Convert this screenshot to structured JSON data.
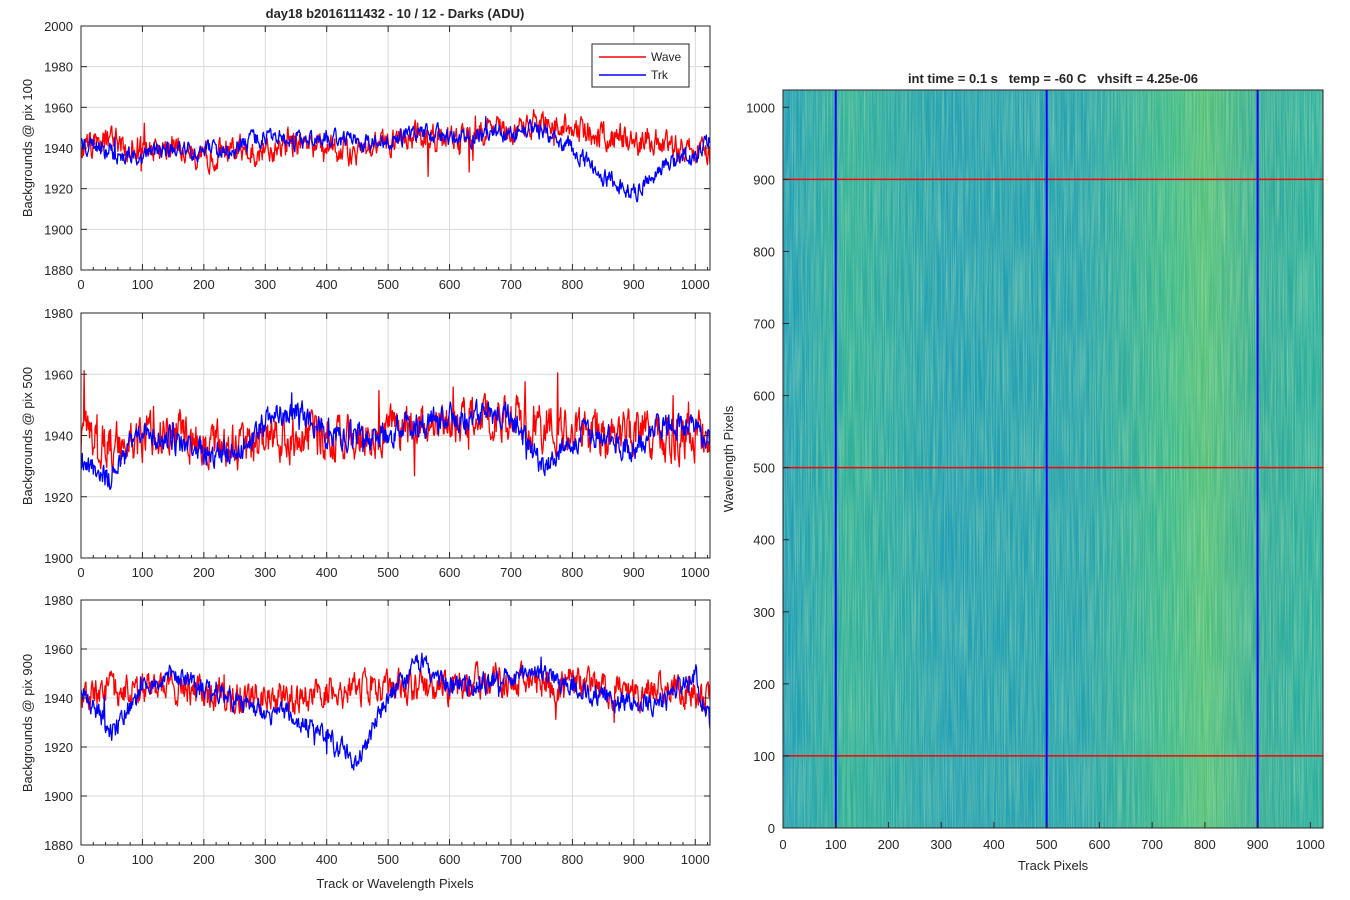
{
  "figure": {
    "title": "day18 b2016111432 - 10 / 12 - Darks (ADU)",
    "colors": {
      "wave": "#ff0000",
      "trk": "#0000ff",
      "grid": "#d9d9d9",
      "axis": "#262626"
    }
  },
  "chart_data": [
    {
      "type": "line",
      "title": "day18 b2016111432 - 10 / 12 - Darks (ADU)",
      "xlabel": "",
      "ylabel": "Backgrounds @ pix 100",
      "xlim": [
        0,
        1024
      ],
      "ylim": [
        1880,
        2000
      ],
      "xticks": [
        0,
        100,
        200,
        300,
        400,
        500,
        600,
        700,
        800,
        900,
        1000
      ],
      "yticks": [
        1880,
        1900,
        1920,
        1940,
        1960,
        1980,
        2000
      ],
      "grid": true,
      "legend": {
        "placement": "top-right",
        "entries": [
          "Wave",
          "Trk"
        ]
      },
      "series": [
        {
          "name": "Wave",
          "color": "#ff0000",
          "x": [
            0,
            50,
            100,
            150,
            200,
            250,
            300,
            350,
            400,
            450,
            500,
            550,
            600,
            650,
            700,
            750,
            800,
            850,
            900,
            950,
            1000,
            1023
          ],
          "values": [
            1940,
            1944,
            1938,
            1942,
            1936,
            1940,
            1938,
            1942,
            1940,
            1938,
            1942,
            1946,
            1944,
            1948,
            1950,
            1952,
            1950,
            1946,
            1944,
            1942,
            1940,
            1936
          ],
          "noise": 9
        },
        {
          "name": "Trk",
          "color": "#0000ff",
          "x": [
            0,
            50,
            100,
            150,
            200,
            250,
            300,
            350,
            400,
            450,
            500,
            550,
            600,
            650,
            700,
            750,
            800,
            850,
            900,
            950,
            1000,
            1023
          ],
          "values": [
            1942,
            1938,
            1936,
            1940,
            1938,
            1940,
            1946,
            1944,
            1946,
            1942,
            1944,
            1948,
            1946,
            1946,
            1948,
            1948,
            1940,
            1926,
            1918,
            1932,
            1936,
            1944
          ],
          "noise": 6
        }
      ]
    },
    {
      "type": "line",
      "xlabel": "",
      "ylabel": "Backgrounds @ pix 500",
      "xlim": [
        0,
        1024
      ],
      "ylim": [
        1900,
        1980
      ],
      "xticks": [
        0,
        100,
        200,
        300,
        400,
        500,
        600,
        700,
        800,
        900,
        1000
      ],
      "yticks": [
        1900,
        1920,
        1940,
        1960,
        1980
      ],
      "grid": true,
      "series": [
        {
          "name": "Wave",
          "color": "#ff0000",
          "x": [
            0,
            50,
            100,
            150,
            200,
            250,
            300,
            350,
            400,
            450,
            500,
            550,
            600,
            650,
            700,
            750,
            800,
            850,
            900,
            950,
            1000,
            1023
          ],
          "values": [
            1940,
            1938,
            1940,
            1942,
            1938,
            1936,
            1938,
            1940,
            1940,
            1940,
            1942,
            1944,
            1944,
            1946,
            1946,
            1944,
            1942,
            1940,
            1942,
            1940,
            1940,
            1938
          ],
          "noise": 10
        },
        {
          "name": "Trk",
          "color": "#0000ff",
          "x": [
            0,
            50,
            100,
            150,
            200,
            250,
            300,
            350,
            400,
            450,
            500,
            550,
            600,
            650,
            700,
            750,
            800,
            850,
            900,
            950,
            1000,
            1023
          ],
          "values": [
            1932,
            1926,
            1942,
            1938,
            1934,
            1934,
            1944,
            1948,
            1940,
            1940,
            1940,
            1944,
            1946,
            1948,
            1946,
            1930,
            1940,
            1940,
            1936,
            1944,
            1944,
            1938
          ],
          "noise": 6
        }
      ]
    },
    {
      "type": "line",
      "xlabel": "Track or Wavelength Pixels",
      "ylabel": "Backgrounds @ pix 900",
      "xlim": [
        0,
        1024
      ],
      "ylim": [
        1880,
        1980
      ],
      "xticks": [
        0,
        100,
        200,
        300,
        400,
        500,
        600,
        700,
        800,
        900,
        1000
      ],
      "yticks": [
        1880,
        1900,
        1920,
        1940,
        1960,
        1980
      ],
      "grid": true,
      "series": [
        {
          "name": "Wave",
          "color": "#ff0000",
          "x": [
            0,
            50,
            100,
            150,
            200,
            250,
            300,
            350,
            400,
            450,
            500,
            550,
            600,
            650,
            700,
            750,
            800,
            850,
            900,
            950,
            1000,
            1023
          ],
          "values": [
            1940,
            1942,
            1944,
            1944,
            1942,
            1940,
            1942,
            1940,
            1942,
            1944,
            1944,
            1944,
            1944,
            1946,
            1946,
            1946,
            1946,
            1944,
            1942,
            1944,
            1942,
            1940
          ],
          "noise": 9
        },
        {
          "name": "Trk",
          "color": "#0000ff",
          "x": [
            0,
            50,
            100,
            150,
            200,
            250,
            300,
            350,
            400,
            450,
            500,
            550,
            600,
            650,
            700,
            750,
            800,
            850,
            900,
            950,
            1000,
            1023
          ],
          "values": [
            1944,
            1926,
            1944,
            1950,
            1944,
            1938,
            1934,
            1932,
            1924,
            1914,
            1940,
            1954,
            1946,
            1946,
            1948,
            1950,
            1946,
            1940,
            1938,
            1938,
            1950,
            1930
          ],
          "noise": 6
        }
      ]
    },
    {
      "type": "heatmap",
      "title": "int time = 0.1 s   temp = -60 C   vhsift = 4.25e-06",
      "xlabel": "Track Pixels",
      "ylabel": "Wavelength Pixels",
      "xlim": [
        0,
        1024
      ],
      "ylim": [
        0,
        1024
      ],
      "xticks": [
        0,
        100,
        200,
        300,
        400,
        500,
        600,
        700,
        800,
        900,
        1000
      ],
      "yticks": [
        0,
        100,
        200,
        300,
        400,
        500,
        600,
        700,
        800,
        900,
        1000
      ],
      "grid": false,
      "overlays": {
        "vertical_lines_x": [
          100,
          500,
          900
        ],
        "vertical_color": "#0000ff",
        "horizontal_lines_y": [
          100,
          500,
          900
        ],
        "horizontal_color": "#ff0000"
      },
      "colormap": {
        "low": "#1fa0b8",
        "mid": "#3cb88a",
        "high": "#a8cf55"
      }
    }
  ]
}
